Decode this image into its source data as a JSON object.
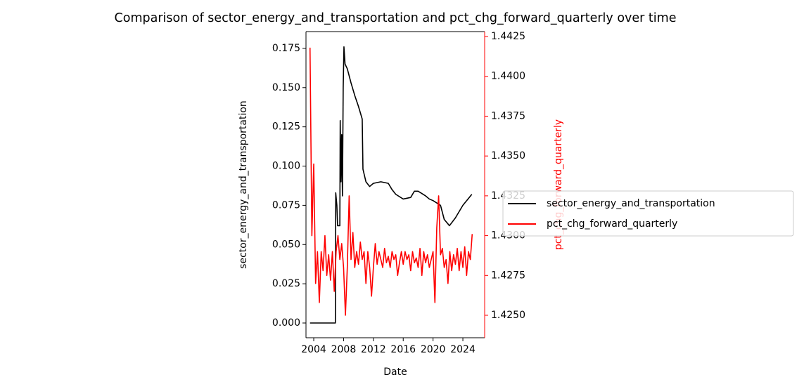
{
  "chart_data": {
    "type": "line",
    "title": "Comparison of sector_energy_and_transportation and pct_chg_forward_quarterly over time",
    "x_label": "Date",
    "y_label": "sector_energy_and_transportation",
    "y2_label": "pct_chg_forward_quarterly",
    "xlim": [
      2002.96,
      2026.92
    ],
    "xticks": [
      2004,
      2008,
      2012,
      2016,
      2020,
      2024
    ],
    "ylim": [
      -0.0094,
      0.1857
    ],
    "yticks": [
      {
        "value": 0,
        "label": "0.000"
      },
      {
        "value": 0.025,
        "label": "0.025"
      },
      {
        "value": 0.05,
        "label": "0.050"
      },
      {
        "value": 0.075,
        "label": "0.075"
      },
      {
        "value": 0.1,
        "label": "0.100"
      },
      {
        "value": 0.125,
        "label": "0.125"
      },
      {
        "value": 0.15,
        "label": "0.150"
      },
      {
        "value": 0.175,
        "label": "0.175"
      }
    ],
    "y2lim": [
      1.42359,
      1.44281
    ],
    "y2ticks": [
      {
        "value": 1.425,
        "label": "1.4250"
      },
      {
        "value": 1.4275,
        "label": "1.4275"
      },
      {
        "value": 1.43,
        "label": "1.4300"
      },
      {
        "value": 1.4325,
        "label": "1.4325"
      },
      {
        "value": 1.435,
        "label": "1.4350"
      },
      {
        "value": 1.4375,
        "label": "1.4375"
      },
      {
        "value": 1.44,
        "label": "1.4400"
      },
      {
        "value": 1.4425,
        "label": "1.4425"
      }
    ],
    "legend": "right",
    "series": [
      {
        "name": "sector_energy_and_transportation",
        "color": "#000000",
        "axis": "y",
        "x": [
          2003.5,
          2006.9,
          2006.95,
          2007.1,
          2007.2,
          2007.5,
          2007.55,
          2007.65,
          2007.75,
          2007.85,
          2007.95,
          2008.05,
          2008.2,
          2008.5,
          2009,
          2009.5,
          2010,
          2010.5,
          2010.6,
          2011,
          2011.5,
          2012,
          2013,
          2014,
          2014.5,
          2015,
          2016,
          2017,
          2017.5,
          2018,
          2019,
          2019.5,
          2020,
          2021,
          2021.5,
          2022.2,
          2023,
          2024,
          2025.2
        ],
        "values": [
          0,
          0,
          0.083,
          0.075,
          0.062,
          0.062,
          0.129,
          0.09,
          0.12,
          0.081,
          0.15,
          0.176,
          0.165,
          0.162,
          0.153,
          0.145,
          0.138,
          0.13,
          0.098,
          0.09,
          0.087,
          0.089,
          0.09,
          0.089,
          0.085,
          0.082,
          0.079,
          0.08,
          0.084,
          0.084,
          0.081,
          0.079,
          0.078,
          0.075,
          0.066,
          0.062,
          0.067,
          0.075,
          0.082
        ]
      },
      {
        "name": "pct_chg_forward_quarterly",
        "color": "#ff0000",
        "axis": "y2",
        "x": [
          2003.5,
          2003.75,
          2004,
          2004.25,
          2004.5,
          2004.75,
          2005,
          2005.25,
          2005.5,
          2005.75,
          2006,
          2006.25,
          2006.5,
          2006.75,
          2007,
          2007.25,
          2007.5,
          2007.75,
          2008,
          2008.25,
          2008.5,
          2008.75,
          2009,
          2009.25,
          2009.5,
          2009.75,
          2010,
          2010.25,
          2010.5,
          2010.75,
          2011,
          2011.25,
          2011.5,
          2011.75,
          2012,
          2012.25,
          2012.5,
          2012.75,
          2013,
          2013.25,
          2013.5,
          2013.75,
          2014,
          2014.25,
          2014.5,
          2014.75,
          2015,
          2015.25,
          2015.5,
          2015.75,
          2016,
          2016.25,
          2016.5,
          2016.75,
          2017,
          2017.25,
          2017.5,
          2017.75,
          2018,
          2018.25,
          2018.5,
          2018.75,
          2019,
          2019.25,
          2019.5,
          2019.75,
          2020,
          2020.25,
          2020.5,
          2020.75,
          2021,
          2021.25,
          2021.5,
          2021.75,
          2022,
          2022.25,
          2022.5,
          2022.75,
          2023,
          2023.25,
          2023.5,
          2023.75,
          2024,
          2024.25,
          2024.5,
          2024.75,
          2025,
          2025.25
        ],
        "values": [
          1.4418,
          1.43,
          1.4345,
          1.427,
          1.429,
          1.4258,
          1.429,
          1.4278,
          1.43,
          1.4275,
          1.4288,
          1.4272,
          1.429,
          1.4265,
          1.429,
          1.43,
          1.4285,
          1.4295,
          1.428,
          1.425,
          1.428,
          1.4325,
          1.4285,
          1.4302,
          1.428,
          1.429,
          1.4282,
          1.4296,
          1.4285,
          1.429,
          1.427,
          1.429,
          1.428,
          1.4262,
          1.428,
          1.4295,
          1.4282,
          1.429,
          1.4285,
          1.428,
          1.4292,
          1.4283,
          1.4287,
          1.428,
          1.429,
          1.4285,
          1.4288,
          1.4275,
          1.4283,
          1.429,
          1.4282,
          1.429,
          1.4285,
          1.4288,
          1.4278,
          1.429,
          1.4283,
          1.4286,
          1.428,
          1.4292,
          1.4275,
          1.429,
          1.4283,
          1.4288,
          1.428,
          1.4285,
          1.429,
          1.4258,
          1.4305,
          1.4325,
          1.4288,
          1.4292,
          1.428,
          1.4285,
          1.427,
          1.429,
          1.4278,
          1.4288,
          1.4282,
          1.4292,
          1.4278,
          1.429,
          1.428,
          1.4293,
          1.4275,
          1.429,
          1.4285,
          1.4301
        ]
      }
    ]
  }
}
